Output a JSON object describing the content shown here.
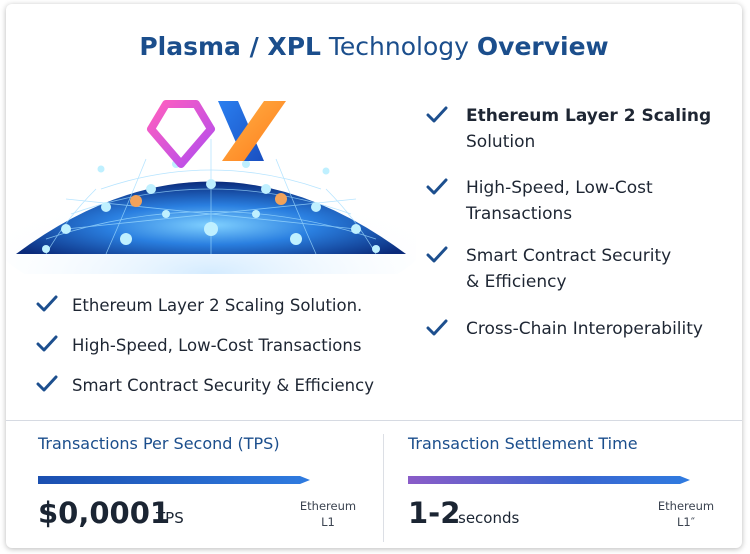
{
  "title": {
    "part1": "Plasma / XPL",
    "part2": "Technology",
    "part3": "Overview"
  },
  "hero": {
    "logo_mark_letter": "X"
  },
  "right_features": [
    "Ethereum Layer 2 Scaling",
    "Solution",
    "High-Speed, Low-Cost",
    "Transactions",
    "Smart Contract Security",
    "& Efficiency",
    "Cross-Chain Interoperability"
  ],
  "left_features": [
    "Ethereum Layer 2 Scaling Solution.",
    "High-Speed, Low-Cost Transactions",
    "Smart Contract Security & Efficiency"
  ],
  "metrics": {
    "tps": {
      "label": "Transactions Per Second (TPS)",
      "value": "$0,0001",
      "unit": "TPS",
      "compare_line1": "Ethereum",
      "compare_line2": "L1"
    },
    "settlement": {
      "label": "Transaction Settlement Time",
      "value": "1-2",
      "unit": "seconds",
      "compare_line1": "Ethereum",
      "compare_line2": "L1″"
    }
  },
  "colors": {
    "title": "#1b4e8c",
    "check": "#1d4f8e",
    "bar_blue": "#1f5fbf",
    "bar_purple": "#8a5cc8",
    "text": "#1e2633"
  }
}
